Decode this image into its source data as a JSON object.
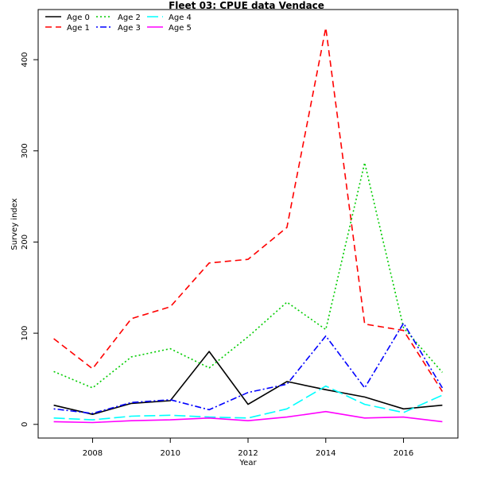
{
  "chart_data": {
    "type": "line",
    "title": "Fleet 03:  CPUE data Vendace",
    "xlabel": "Year",
    "ylabel": "Survey index",
    "xlim": [
      2006.6,
      2017.4
    ],
    "ylim": [
      -15,
      455
    ],
    "xticks": [
      2008,
      2010,
      2012,
      2014,
      2016
    ],
    "yticks": [
      0,
      100,
      200,
      300,
      400
    ],
    "grid": false,
    "legend_position": "top-left",
    "x": [
      2007,
      2008,
      2009,
      2010,
      2011,
      2012,
      2013,
      2014,
      2015,
      2016,
      2017
    ],
    "series": [
      {
        "name": "Age 0",
        "color": "#000000",
        "dash": "solid",
        "values": [
          21,
          11,
          23,
          26,
          80,
          22,
          47,
          38,
          30,
          17,
          21
        ]
      },
      {
        "name": "Age 1",
        "color": "#ff0000",
        "dash": "dashed",
        "values": [
          94,
          61,
          116,
          129,
          177,
          181,
          216,
          435,
          110,
          103,
          36
        ]
      },
      {
        "name": "Age 2",
        "color": "#00cc00",
        "dash": "dotted",
        "values": [
          58,
          40,
          74,
          83,
          62,
          96,
          134,
          104,
          287,
          106,
          57
        ]
      },
      {
        "name": "Age 3",
        "color": "#0000ff",
        "dash": "dotdash",
        "values": [
          17,
          12,
          24,
          27,
          16,
          35,
          44,
          97,
          40,
          111,
          40
        ]
      },
      {
        "name": "Age 4",
        "color": "#00ffff",
        "dash": "longdash",
        "values": [
          7,
          5,
          9,
          10,
          8,
          7,
          17,
          42,
          22,
          13,
          32
        ]
      },
      {
        "name": "Age 5",
        "color": "#ff00ff",
        "dash": "solid",
        "values": [
          3,
          2,
          4,
          5,
          7,
          4,
          8,
          14,
          7,
          8,
          3
        ]
      }
    ]
  }
}
